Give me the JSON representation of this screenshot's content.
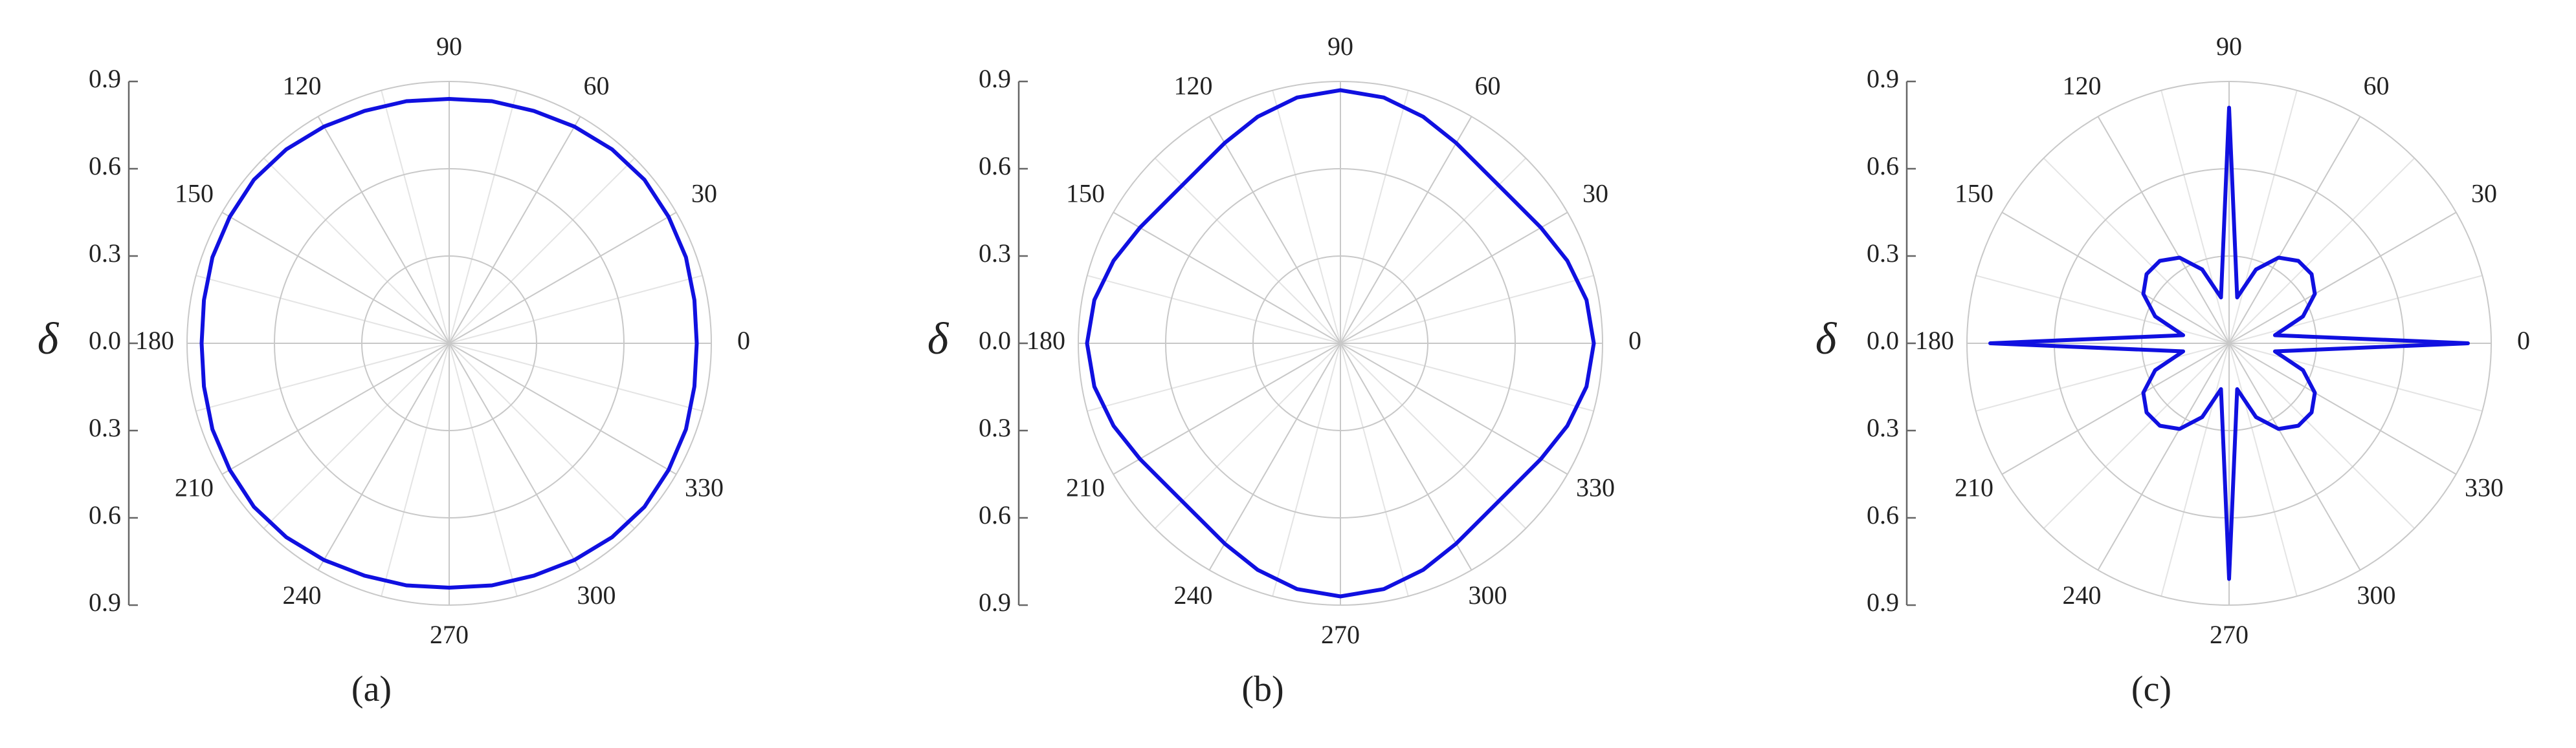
{
  "chart_data": [
    {
      "type": "polar",
      "label": "(a)",
      "y_label": "δ",
      "ylim": [
        -0.9,
        0.9
      ],
      "yticks": [
        0.9,
        0.6,
        0.3,
        {
          "value": 0,
          "label": "0.0"
        },
        {
          "value": -0.3,
          "label": "0.3"
        },
        {
          "value": -0.6,
          "label": "0.6"
        },
        {
          "value": -0.9,
          "label": "0.9"
        }
      ],
      "theta_ticks": [
        0,
        30,
        60,
        90,
        120,
        150,
        180,
        210,
        240,
        270,
        300,
        330
      ],
      "color": "#1010e0",
      "theta": [
        0,
        10,
        20,
        30,
        40,
        50,
        60,
        70,
        80,
        90,
        100,
        110,
        120,
        130,
        140,
        150,
        160,
        170,
        180,
        190,
        200,
        210,
        220,
        230,
        240,
        250,
        260,
        270,
        280,
        290,
        300,
        310,
        320,
        330,
        340,
        350
      ],
      "r": [
        0.85,
        0.855,
        0.865,
        0.87,
        0.875,
        0.87,
        0.86,
        0.85,
        0.845,
        0.84,
        0.845,
        0.85,
        0.86,
        0.87,
        0.875,
        0.87,
        0.865,
        0.855,
        0.85,
        0.855,
        0.865,
        0.87,
        0.875,
        0.87,
        0.86,
        0.85,
        0.845,
        0.84,
        0.845,
        0.85,
        0.86,
        0.87,
        0.875,
        0.87,
        0.865,
        0.855
      ]
    },
    {
      "type": "polar",
      "label": "(b)",
      "y_label": "δ",
      "ylim": [
        -0.9,
        0.9
      ],
      "yticks": [
        0.9,
        0.6,
        0.3,
        {
          "value": 0,
          "label": "0.0"
        },
        {
          "value": -0.3,
          "label": "0.3"
        },
        {
          "value": -0.6,
          "label": "0.6"
        },
        {
          "value": -0.9,
          "label": "0.9"
        }
      ],
      "theta_ticks": [
        0,
        30,
        60,
        90,
        120,
        150,
        180,
        210,
        240,
        270,
        300,
        330
      ],
      "color": "#1010e0",
      "theta": [
        0,
        10,
        20,
        30,
        40,
        50,
        60,
        70,
        80,
        90,
        100,
        110,
        120,
        130,
        140,
        150,
        160,
        170,
        180,
        190,
        200,
        210,
        220,
        230,
        240,
        250,
        260,
        270,
        280,
        290,
        300,
        310,
        320,
        330,
        340,
        350
      ],
      "r": [
        0.87,
        0.858,
        0.829,
        0.795,
        0.771,
        0.771,
        0.795,
        0.829,
        0.858,
        0.87,
        0.858,
        0.829,
        0.795,
        0.771,
        0.771,
        0.795,
        0.829,
        0.858,
        0.87,
        0.858,
        0.829,
        0.795,
        0.771,
        0.771,
        0.795,
        0.829,
        0.858,
        0.87,
        0.858,
        0.829,
        0.795,
        0.771,
        0.771,
        0.795,
        0.829,
        0.858
      ]
    },
    {
      "type": "polar",
      "label": "(c)",
      "y_label": "δ",
      "ylim": [
        -0.9,
        0.9
      ],
      "yticks": [
        0.9,
        0.6,
        0.3,
        {
          "value": 0,
          "label": "0.0"
        },
        {
          "value": -0.3,
          "label": "0.3"
        },
        {
          "value": -0.6,
          "label": "0.6"
        },
        {
          "value": -0.9,
          "label": "0.9"
        }
      ],
      "theta_ticks": [
        0,
        30,
        60,
        90,
        120,
        150,
        180,
        210,
        240,
        270,
        300,
        330
      ],
      "color": "#1010e0",
      "theta": [
        0,
        10,
        20,
        30,
        40,
        50,
        60,
        70,
        80,
        90,
        100,
        110,
        120,
        130,
        140,
        150,
        160,
        170,
        180,
        190,
        200,
        210,
        220,
        230,
        240,
        250,
        260,
        270,
        280,
        290,
        300,
        310,
        320,
        330,
        340,
        350
      ],
      "r": [
        0.82,
        0.16,
        0.27,
        0.34,
        0.37,
        0.37,
        0.34,
        0.27,
        0.16,
        0.81,
        0.16,
        0.27,
        0.34,
        0.37,
        0.37,
        0.34,
        0.27,
        0.16,
        0.82,
        0.16,
        0.27,
        0.34,
        0.37,
        0.37,
        0.34,
        0.27,
        0.16,
        0.81,
        0.16,
        0.27,
        0.34,
        0.37,
        0.37,
        0.34,
        0.27,
        0.16
      ]
    }
  ]
}
